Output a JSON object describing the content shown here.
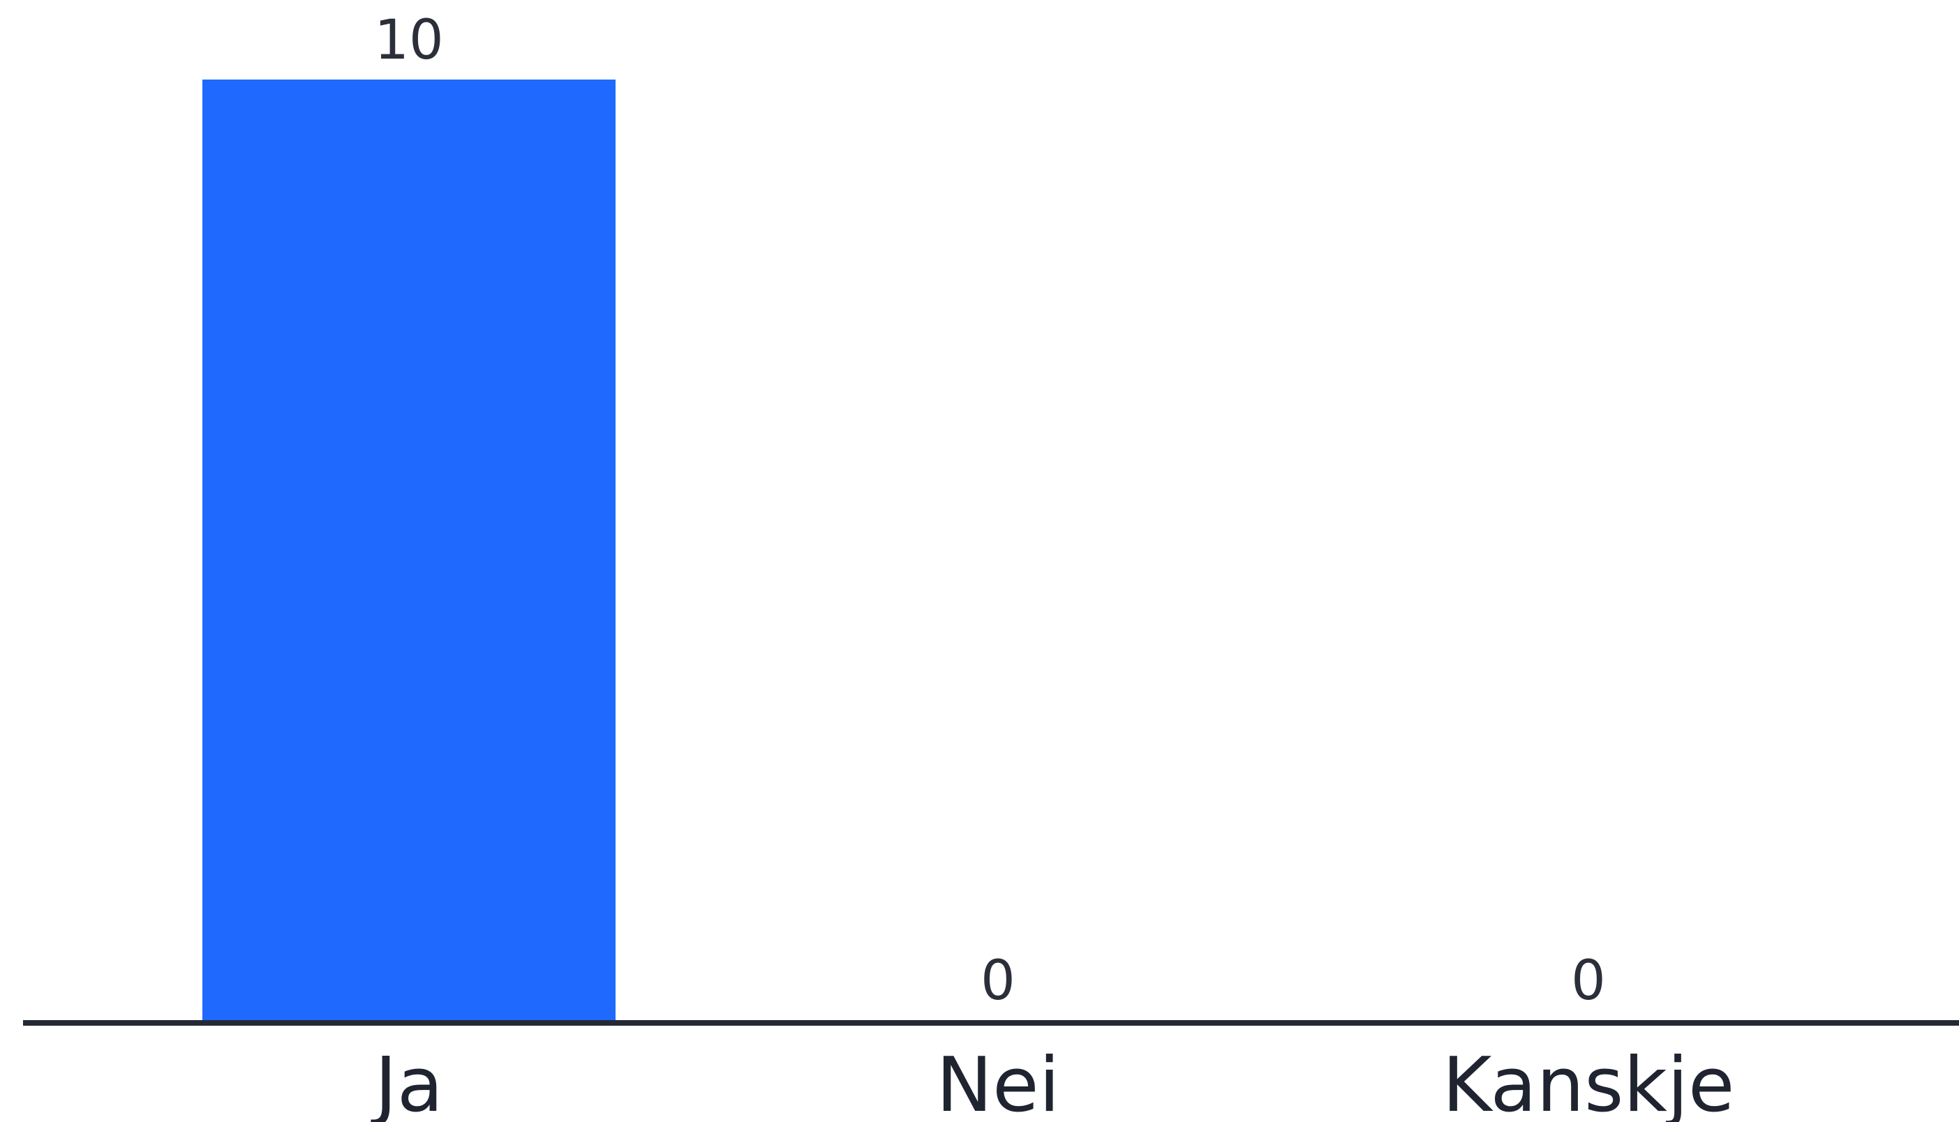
{
  "chart_data": {
    "type": "bar",
    "categories": [
      "Ja",
      "Nei",
      "Kanskje"
    ],
    "values": [
      10,
      0,
      0
    ],
    "data_labels": [
      "10",
      "0",
      "0"
    ],
    "ylim": [
      0,
      10
    ],
    "grid": false,
    "legend": "none",
    "colors": {
      "bar": "#1f69ff",
      "axis": "#232a35",
      "label_text": "#2b2f3a",
      "tick_text": "#1f2430",
      "background": "#ffffff"
    }
  }
}
